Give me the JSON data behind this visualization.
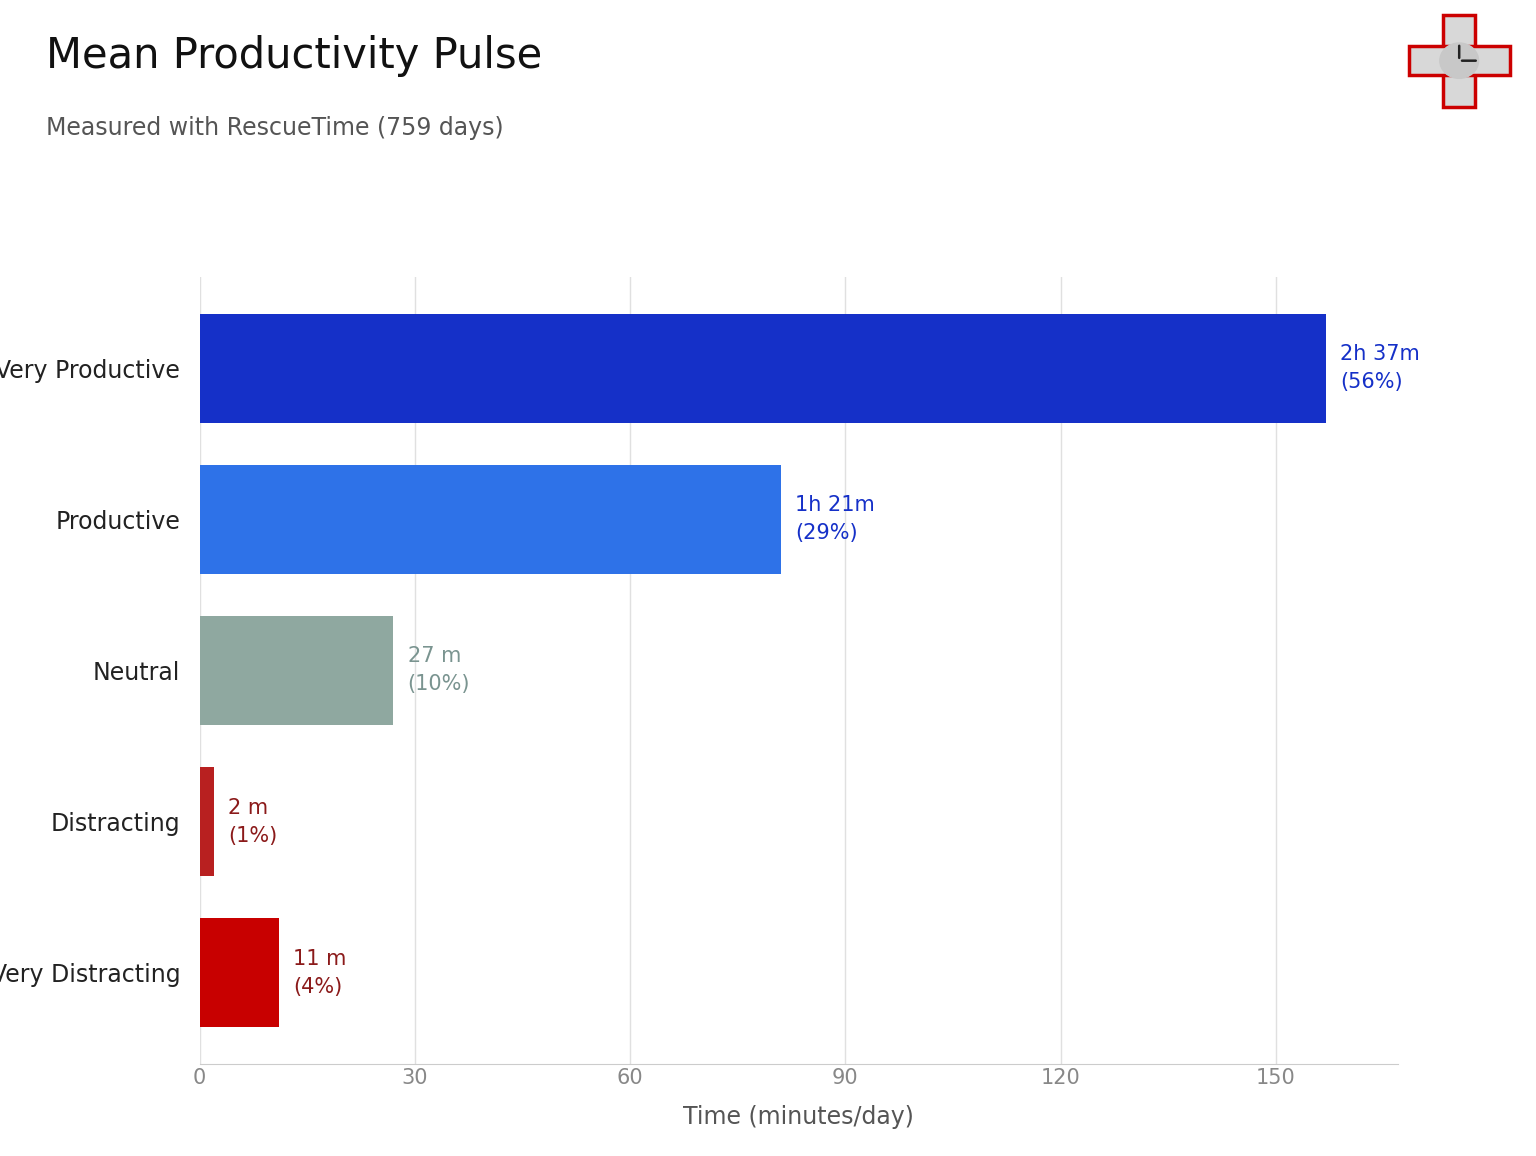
{
  "title": "Mean Productivity Pulse",
  "subtitle": "Measured with RescueTime (759 days)",
  "categories": [
    "Very Productive",
    "Productive",
    "Neutral",
    "Distracting",
    "Very Distracting"
  ],
  "values": [
    157,
    81,
    27,
    2,
    11
  ],
  "labels": [
    "2h 37m\n(56%)",
    "1h 21m\n(29%)",
    "27 m\n(10%)",
    "2 m\n(1%)",
    "11 m\n(4%)"
  ],
  "bar_colors": [
    "#1530c8",
    "#2e72e8",
    "#8fa8a0",
    "#b82020",
    "#c80000"
  ],
  "label_colors": [
    "#1530c8",
    "#1530c8",
    "#7a9490",
    "#8b1a1a",
    "#8b1a1a"
  ],
  "xlabel": "Time (minutes/day)",
  "xlim": [
    0,
    167
  ],
  "xticks": [
    0,
    30,
    60,
    90,
    120,
    150
  ],
  "background_color": "#ffffff",
  "title_fontsize": 30,
  "subtitle_fontsize": 17,
  "label_fontsize": 15,
  "ytick_fontsize": 17,
  "xtick_fontsize": 15,
  "xlabel_fontsize": 17
}
